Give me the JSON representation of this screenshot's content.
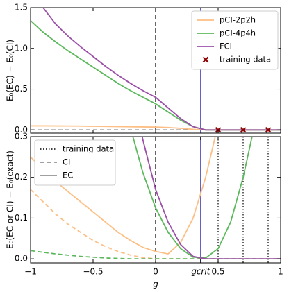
{
  "chart_data": [
    {
      "type": "line",
      "ylabel": "E₀(EC) − E₀(CI)",
      "x": [
        -1,
        -0.9,
        -0.8,
        -0.7,
        -0.6,
        -0.5,
        -0.4,
        -0.3,
        -0.2,
        -0.1,
        0,
        0.1,
        0.2,
        0.3,
        0.4,
        0.5,
        0.6,
        0.7,
        0.8,
        0.9,
        1
      ],
      "xlim": [
        -1,
        1
      ],
      "ylim": [
        -0.04,
        1.5
      ],
      "xticks": [
        -1,
        -0.5,
        0,
        0.5,
        1
      ],
      "xticklabels": false,
      "yticks": [
        {
          "value": 0,
          "label": "0.0"
        },
        {
          "value": 0.5,
          "label": "0.5"
        },
        {
          "value": 1,
          "label": "1.0"
        },
        {
          "value": 1.5,
          "label": "1.5"
        }
      ],
      "series": [
        {
          "name": "pCI-2p2h",
          "color": "#fdbf85",
          "style": "solid",
          "values": [
            0.05,
            0.05,
            0.049,
            0.048,
            0.047,
            0.045,
            0.043,
            0.041,
            0.039,
            0.037,
            0.035,
            0.03,
            0.02,
            0.008,
            0,
            0,
            0,
            0,
            0,
            0,
            0
          ]
        },
        {
          "name": "pCI-4p4h",
          "color": "#5cb85c",
          "style": "solid",
          "values": [
            1.34,
            1.2,
            1.08,
            0.97,
            0.87,
            0.77,
            0.67,
            0.57,
            0.48,
            0.4,
            0.32,
            0.22,
            0.12,
            0.04,
            0,
            0,
            0,
            0,
            0,
            0,
            0
          ]
        },
        {
          "name": "FCI",
          "color": "#9b4fa8",
          "style": "solid",
          "values": [
            null,
            1.5,
            1.3,
            1.15,
            1.02,
            0.9,
            0.78,
            0.67,
            0.57,
            0.48,
            0.4,
            0.27,
            0.14,
            0.04,
            0,
            0,
            0,
            0,
            0,
            0,
            0
          ]
        },
        {
          "name": "training data",
          "type": "scatter",
          "color": "#8b0000",
          "x": [
            0.5,
            0.7,
            0.9
          ],
          "values": [
            0,
            0,
            0
          ]
        }
      ],
      "vlines": [
        {
          "value": 0,
          "style": "dashed",
          "color": "#000000"
        },
        {
          "value": 0.36,
          "style": "solid",
          "color": "#3a3ab8"
        }
      ],
      "hlines": [
        {
          "value": 0,
          "from": -1,
          "to": 0.36,
          "style": "dashed",
          "color": "#000000"
        }
      ]
    },
    {
      "type": "line",
      "ylabel": "E₀(EC or CI) − E₀(exact)",
      "xlabel": "g",
      "x": [
        -1,
        -0.9,
        -0.8,
        -0.7,
        -0.6,
        -0.5,
        -0.4,
        -0.3,
        -0.2,
        -0.1,
        0,
        0.1,
        0.2,
        0.3,
        0.4,
        0.5,
        0.6,
        0.7,
        0.8,
        0.9,
        1
      ],
      "xlim": [
        -1,
        1
      ],
      "ylim": [
        -0.01,
        0.3
      ],
      "xticks": [
        {
          "value": -1,
          "label": "−1"
        },
        {
          "value": -0.5,
          "label": "−0.5"
        },
        0,
        {
          "value": 0.36,
          "label": "gcrit"
        },
        0.5,
        1
      ],
      "yticks": [
        {
          "value": 0,
          "label": "0.0"
        },
        {
          "value": 0.1,
          "label": "0.1"
        },
        {
          "value": 0.2,
          "label": "0.2"
        },
        {
          "value": 0.3,
          "label": "0.3"
        }
      ],
      "series": [
        {
          "color": "#fdbf85",
          "style": "solid",
          "values": [
            0.25,
            0.22,
            0.19,
            0.165,
            0.14,
            0.115,
            0.09,
            0.065,
            0.045,
            0.028,
            0.018,
            0.012,
            0.04,
            0.1,
            0.2,
            0.33,
            null,
            null,
            null,
            null,
            null
          ]
        },
        {
          "color": "#fdbf85",
          "style": "dashed",
          "values": [
            0.17,
            0.14,
            0.11,
            0.085,
            0.065,
            0.045,
            0.03,
            0.018,
            0.009,
            0.003,
            0,
            0,
            0,
            0,
            0,
            0,
            0,
            0,
            0,
            0,
            0
          ]
        },
        {
          "color": "#5cb85c",
          "style": "solid",
          "values": [
            null,
            null,
            null,
            null,
            null,
            null,
            null,
            null,
            0.32,
            0.21,
            0.125,
            0.065,
            0.025,
            0.004,
            0.002,
            0.025,
            0.09,
            0.2,
            0.34,
            null,
            null
          ]
        },
        {
          "color": "#5cb85c",
          "style": "dashed",
          "values": [
            0.02,
            0.016,
            0.012,
            0.009,
            0.006,
            0.004,
            0.002,
            0.001,
            0,
            0,
            0,
            0,
            0,
            0,
            0,
            0,
            0,
            0,
            0,
            0,
            0
          ]
        },
        {
          "color": "#9b4fa8",
          "style": "solid",
          "values": [
            null,
            null,
            null,
            null,
            null,
            null,
            null,
            null,
            0.43,
            0.29,
            0.17,
            0.09,
            0.035,
            0.006,
            0,
            0,
            0,
            0,
            0,
            0,
            0
          ]
        }
      ],
      "vlines": [
        {
          "value": 0,
          "style": "dashed",
          "color": "#000000"
        },
        {
          "value": 0.36,
          "style": "solid",
          "color": "#3a3ab8"
        },
        {
          "value": 0.5,
          "style": "dotted",
          "color": "#000000"
        },
        {
          "value": 0.7,
          "style": "dotted",
          "color": "#000000"
        },
        {
          "value": 0.9,
          "style": "dotted",
          "color": "#000000"
        }
      ],
      "legend": [
        {
          "name": "training data",
          "style": "dotted",
          "color": "#000000"
        },
        {
          "name": "CI",
          "style": "dashed",
          "color": "#808080"
        },
        {
          "name": "EC",
          "style": "solid",
          "color": "#808080"
        }
      ]
    }
  ]
}
